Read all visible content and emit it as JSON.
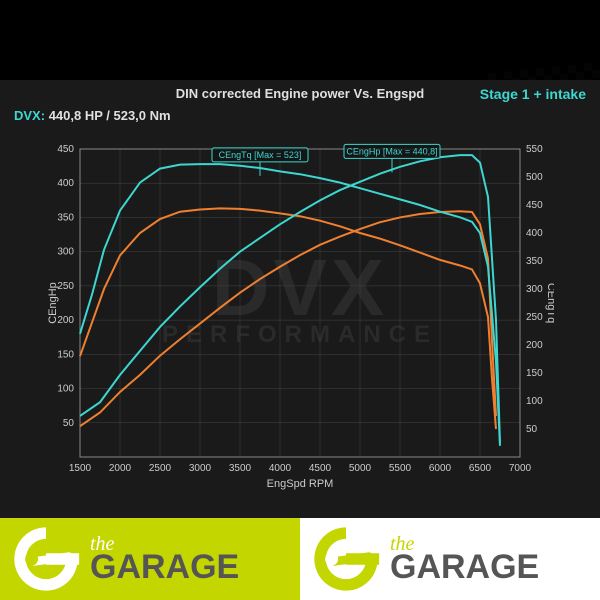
{
  "title": "DIN corrected Engine power Vs. Engspd",
  "stage_label": "Stage 1 + intake",
  "stage_color": "#3dd6d0",
  "dvx_label": "DVX:",
  "dvx_value": "440,8 HP / 523,0 Nm",
  "watermark_main": "DVX",
  "watermark_sub": "PERFORMANCE",
  "chart": {
    "background": "#1a1a1a",
    "grid_color": "#444444",
    "axis_color": "#888888",
    "tick_color": "#cccccc",
    "tick_fontsize": 10,
    "label_fontsize": 11,
    "x_axis": {
      "label": "EngSpd RPM",
      "min": 1500,
      "max": 7000,
      "step": 500
    },
    "y1_axis": {
      "label": "CEngHp",
      "min": 0,
      "max": 450,
      "step": 50
    },
    "y2_axis": {
      "label": "CEngTq",
      "min": 0,
      "max": 550,
      "step": 50
    },
    "colors": {
      "stock": "#f08030",
      "tuned": "#3dd6d0"
    },
    "line_width": 2,
    "callouts": [
      {
        "text": "CEngTq [Max = 523]",
        "x": 3750,
        "y_hp": 440
      },
      {
        "text": "CEngHp [Max = 440,8]",
        "x": 5400,
        "y_hp": 445
      }
    ],
    "series": {
      "hp_tuned": [
        [
          1500,
          60
        ],
        [
          1750,
          80
        ],
        [
          2000,
          120
        ],
        [
          2250,
          155
        ],
        [
          2500,
          190
        ],
        [
          2750,
          220
        ],
        [
          3000,
          248
        ],
        [
          3250,
          275
        ],
        [
          3500,
          300
        ],
        [
          3750,
          320
        ],
        [
          4000,
          340
        ],
        [
          4250,
          358
        ],
        [
          4500,
          375
        ],
        [
          4750,
          390
        ],
        [
          5000,
          402
        ],
        [
          5250,
          414
        ],
        [
          5500,
          424
        ],
        [
          5750,
          432
        ],
        [
          6000,
          438
        ],
        [
          6250,
          441
        ],
        [
          6400,
          441
        ],
        [
          6500,
          430
        ],
        [
          6600,
          380
        ],
        [
          6700,
          200
        ],
        [
          6750,
          20
        ]
      ],
      "hp_stock": [
        [
          1500,
          45
        ],
        [
          1750,
          65
        ],
        [
          2000,
          95
        ],
        [
          2250,
          120
        ],
        [
          2500,
          148
        ],
        [
          2750,
          172
        ],
        [
          3000,
          195
        ],
        [
          3250,
          218
        ],
        [
          3500,
          240
        ],
        [
          3750,
          260
        ],
        [
          4000,
          278
        ],
        [
          4250,
          295
        ],
        [
          4500,
          310
        ],
        [
          4750,
          322
        ],
        [
          5000,
          333
        ],
        [
          5250,
          343
        ],
        [
          5500,
          350
        ],
        [
          5750,
          355
        ],
        [
          6000,
          358
        ],
        [
          6250,
          359
        ],
        [
          6400,
          358
        ],
        [
          6500,
          340
        ],
        [
          6600,
          290
        ],
        [
          6650,
          170
        ],
        [
          6700,
          60
        ]
      ],
      "tq_tuned": [
        [
          1500,
          220
        ],
        [
          1650,
          290
        ],
        [
          1800,
          370
        ],
        [
          2000,
          440
        ],
        [
          2250,
          490
        ],
        [
          2500,
          515
        ],
        [
          2750,
          522
        ],
        [
          3000,
          523
        ],
        [
          3250,
          523
        ],
        [
          3500,
          520
        ],
        [
          3750,
          516
        ],
        [
          4000,
          510
        ],
        [
          4250,
          505
        ],
        [
          4500,
          498
        ],
        [
          4750,
          490
        ],
        [
          5000,
          480
        ],
        [
          5250,
          470
        ],
        [
          5500,
          460
        ],
        [
          5750,
          450
        ],
        [
          6000,
          438
        ],
        [
          6250,
          428
        ],
        [
          6400,
          420
        ],
        [
          6500,
          400
        ],
        [
          6600,
          340
        ],
        [
          6700,
          170
        ],
        [
          6750,
          20
        ]
      ],
      "tq_stock": [
        [
          1500,
          180
        ],
        [
          1650,
          240
        ],
        [
          1800,
          300
        ],
        [
          2000,
          360
        ],
        [
          2250,
          400
        ],
        [
          2500,
          425
        ],
        [
          2750,
          438
        ],
        [
          3000,
          442
        ],
        [
          3250,
          444
        ],
        [
          3500,
          443
        ],
        [
          3750,
          440
        ],
        [
          4000,
          435
        ],
        [
          4250,
          430
        ],
        [
          4500,
          422
        ],
        [
          4750,
          412
        ],
        [
          5000,
          400
        ],
        [
          5250,
          390
        ],
        [
          5500,
          378
        ],
        [
          5750,
          365
        ],
        [
          6000,
          352
        ],
        [
          6250,
          342
        ],
        [
          6400,
          335
        ],
        [
          6500,
          310
        ],
        [
          6600,
          250
        ],
        [
          6650,
          140
        ],
        [
          6700,
          50
        ]
      ]
    }
  },
  "footer": {
    "bg_left": "#c4d600",
    "bg_right": "#ffffff",
    "icon_color_on_green": "#ffffff",
    "icon_color_on_white": "#c4d600",
    "the": "the",
    "garage": "GARAGE",
    "text_colors": {
      "the_on_green": "#ffffff",
      "garage_on_green": "#555555",
      "the_on_white": "#c4d600",
      "garage_on_white": "#555555"
    }
  }
}
